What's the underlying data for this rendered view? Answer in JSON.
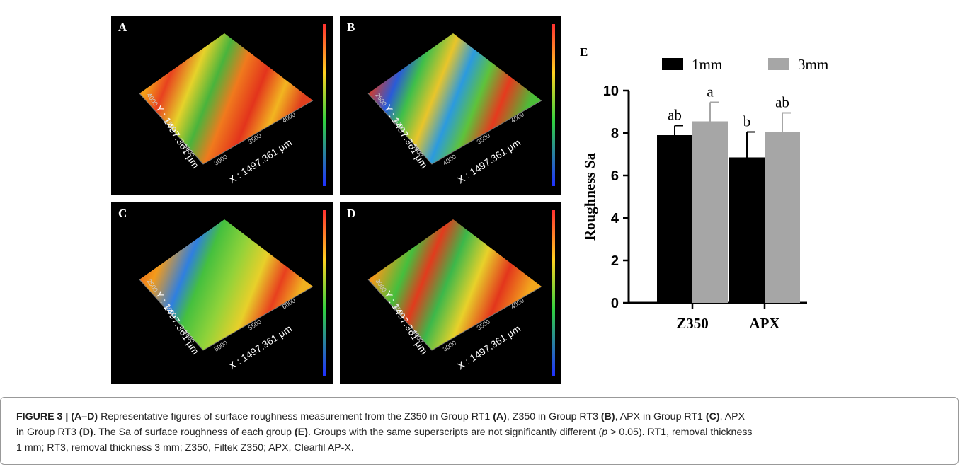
{
  "panels": [
    {
      "letter": "A",
      "y_label": "Y : 1497.361 µm",
      "x_label": "X : 1497.361 µm",
      "y_ticks": [
        "4000",
        "4500",
        "5000"
      ],
      "x_ticks": [
        "3000",
        "3500",
        "4000"
      ]
    },
    {
      "letter": "B",
      "y_label": "Y : 1497.361 µm",
      "x_label": "X : 1497.361 µm",
      "y_ticks": [
        "2500",
        "3000",
        "3500"
      ],
      "x_ticks": [
        "4000",
        "3500",
        "4000"
      ]
    },
    {
      "letter": "C",
      "y_label": "Y : 1497.361 µm",
      "x_label": "X : 1497.361 µm",
      "y_ticks": [
        "2500",
        "3000",
        "3500"
      ],
      "x_ticks": [
        "5000",
        "5500",
        "6000"
      ]
    },
    {
      "letter": "D",
      "y_label": "Y : 1497.361 µm",
      "x_label": "X : 1497.361 µm",
      "y_ticks": [
        "3000",
        "3500",
        "4000"
      ],
      "x_ticks": [
        "3000",
        "3500",
        "4000"
      ]
    }
  ],
  "chart_data": {
    "type": "bar",
    "panel_label": "E",
    "y_label": "Roughness Sa",
    "categories": [
      "Z350",
      "APX"
    ],
    "series": [
      {
        "name": "1mm",
        "color": "#000000",
        "values": [
          7.9,
          6.85
        ],
        "errors": [
          0.45,
          1.2
        ],
        "letters": [
          "ab",
          "b"
        ]
      },
      {
        "name": "3mm",
        "color": "#a6a6a6",
        "values": [
          8.55,
          8.05
        ],
        "errors": [
          0.9,
          0.9
        ],
        "letters": [
          "a",
          "ab"
        ]
      }
    ],
    "ylim": [
      0,
      10
    ],
    "yticks": [
      0,
      2,
      4,
      6,
      8,
      10
    ]
  },
  "caption": {
    "parts": [
      "FIGURE 3 | (A–D)",
      " Representative figures of surface roughness measurement from the Z350 in Group RT1 ",
      "(A)",
      ", Z350 in Group RT3 ",
      "(B)",
      ", APX in Group RT1 ",
      "(C)",
      ", APX",
      "in Group RT3 ",
      "(D)",
      ". The Sa of surface roughness of each group ",
      "(E)",
      ". Groups with the same superscripts are not significantly different (",
      "p",
      " > 0.05). RT1, removal thickness",
      "1 mm; RT3, removal thickness 3 mm; Z350, Filtek Z350; APX, Clearfil AP-X."
    ]
  }
}
